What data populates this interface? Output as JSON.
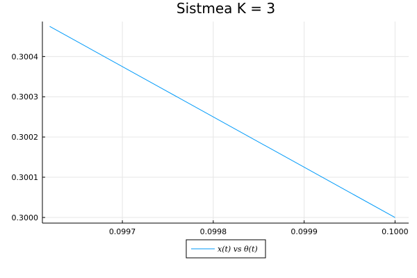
{
  "chart_data": {
    "type": "line",
    "title": "Sistmea K = 3",
    "xlabel": "",
    "ylabel": "",
    "xlim": [
      0.099612,
      0.100015
    ],
    "ylim": [
      0.299986,
      0.300487
    ],
    "xticks": [
      0.0997,
      0.0998,
      0.0999,
      0.1
    ],
    "xtick_labels": [
      "0.0997",
      "0.0998",
      "0.0999",
      "0.1000"
    ],
    "yticks": [
      0.3,
      0.3001,
      0.3002,
      0.3003,
      0.3004
    ],
    "ytick_labels": [
      "0.3000",
      "0.3001",
      "0.3002",
      "0.3003",
      "0.3004"
    ],
    "grid": true,
    "legend_position": "bottom-center",
    "series": [
      {
        "name": "x(t) vs  θ(t)",
        "color": "#009af9",
        "x": [
          0.09962,
          0.1
        ],
        "y": [
          0.300475,
          0.3
        ]
      }
    ]
  }
}
